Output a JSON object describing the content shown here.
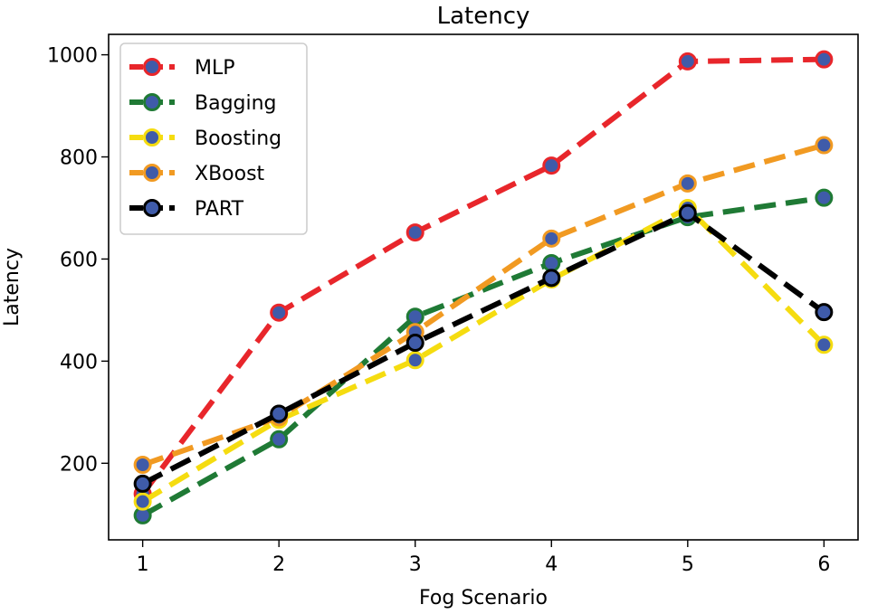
{
  "chart_data": {
    "type": "line",
    "title": "Latency",
    "xlabel": "Fog Scenario",
    "ylabel": "Latency",
    "x": [
      1,
      2,
      3,
      4,
      5,
      6
    ],
    "xlim": [
      0.75,
      6.25
    ],
    "ylim": [
      50,
      1040
    ],
    "xticks": [
      1,
      2,
      3,
      4,
      5,
      6
    ],
    "yticks": [
      200,
      400,
      600,
      800,
      1000
    ],
    "grid": false,
    "legend_position": "upper-left",
    "marker_color": "#3f5ba9",
    "series": [
      {
        "name": "MLP",
        "color": "#e8262b",
        "edge": "#e8262b",
        "values": [
          140,
          495,
          652,
          783,
          987,
          991
        ]
      },
      {
        "name": "Bagging",
        "color": "#1f7a35",
        "edge": "#1f7a35",
        "values": [
          98,
          247,
          487,
          592,
          682,
          720
        ]
      },
      {
        "name": "Boosting",
        "color": "#f5dc10",
        "edge": "#f5dc10",
        "values": [
          125,
          285,
          402,
          560,
          700,
          432
        ]
      },
      {
        "name": "XBoost",
        "color": "#f19a22",
        "edge": "#f19a22",
        "values": [
          197,
          290,
          457,
          640,
          748,
          823
        ]
      },
      {
        "name": "PART",
        "color": "#000000",
        "edge": "#000000",
        "values": [
          160,
          297,
          436,
          563,
          690,
          496
        ]
      }
    ]
  }
}
